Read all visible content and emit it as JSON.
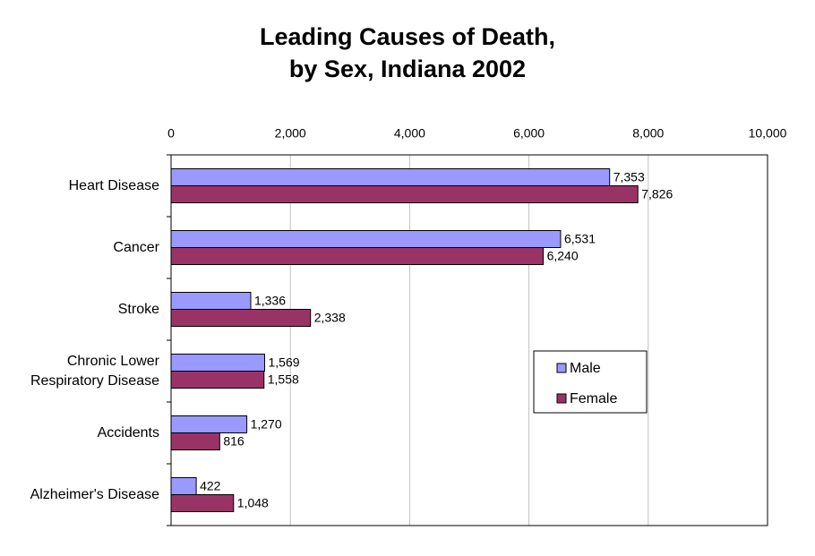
{
  "chart_data": {
    "type": "hbar",
    "title": [
      "Leading Causes of Death,",
      "by Sex, Indiana 2002"
    ],
    "categories": [
      "Heart Disease",
      "Cancer",
      "Stroke",
      "Chronic Lower Respiratory Disease",
      "Accidents",
      "Alzheimer's Disease"
    ],
    "series": [
      {
        "name": "Male",
        "color": "#9999ff",
        "values": [
          7353,
          6531,
          1336,
          1569,
          1270,
          422
        ],
        "value_labels": [
          "7,353",
          "6,531",
          "1,336",
          "1,569",
          "1,270",
          "422"
        ]
      },
      {
        "name": "Female",
        "color": "#993366",
        "values": [
          7826,
          6240,
          2338,
          1558,
          816,
          1048
        ],
        "value_labels": [
          "7,826",
          "6,240",
          "2,338",
          "1,558",
          "816",
          "1,048"
        ]
      }
    ],
    "xlim": [
      0,
      10000
    ],
    "xticks": [
      0,
      {
        "value": 2000,
        "label": "2,000"
      },
      {
        "value": 4000,
        "label": "4,000"
      },
      {
        "value": 6000,
        "label": "6,000"
      },
      {
        "value": 8000,
        "label": "8,000"
      },
      {
        "value": 10000,
        "label": "10,000"
      }
    ],
    "grid": true,
    "legend": "right"
  }
}
